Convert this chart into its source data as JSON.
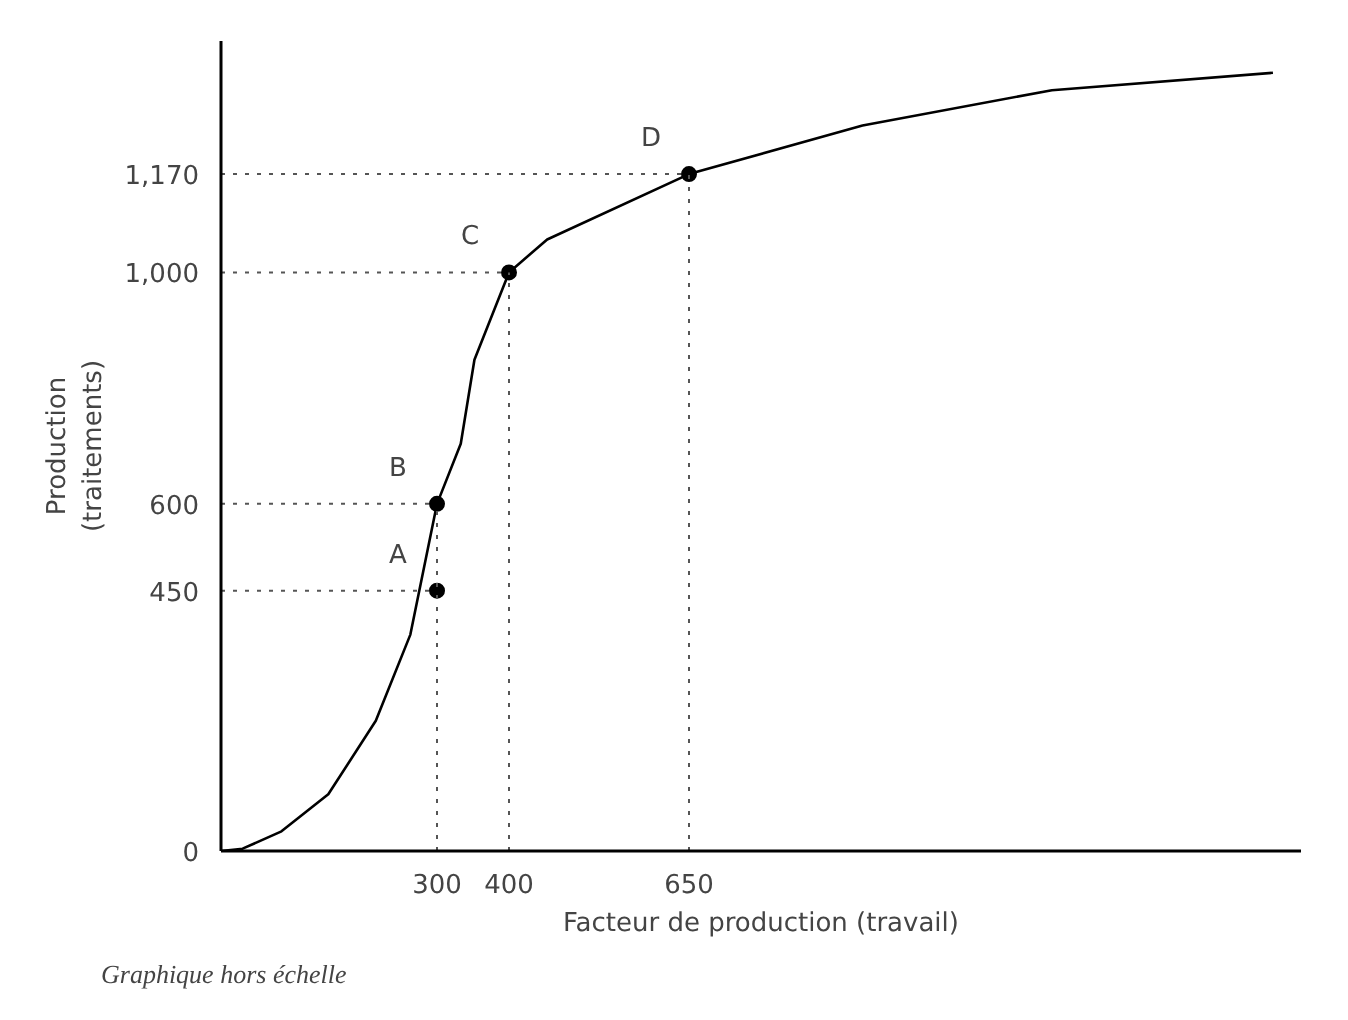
{
  "chart_data": {
    "type": "line",
    "xlabel": "Facteur de production (travail)",
    "ylabel": "Production\n(traitements)",
    "xlim": [
      0,
      1500
    ],
    "ylim": [
      0,
      1400
    ],
    "xticks": [
      300,
      400,
      650
    ],
    "yticks": [
      0,
      450,
      600,
      {
        "value": 1000,
        "label": "1,000"
      },
      {
        "value": 1170,
        "label": "1,170"
      }
    ],
    "grid": false,
    "series": [
      {
        "color": "#000000",
        "marker": "none",
        "line_style": "solid",
        "x": [
          0,
          30,
          84,
          149,
          215,
          263,
          300,
          333,
          352,
          400,
          453,
          650,
          891,
          1154,
          1461
        ],
        "values": [
          0,
          4,
          34,
          98,
          225,
          374,
          600,
          704,
          849,
          1000,
          1057,
          1170,
          1254,
          1315,
          1345
        ]
      },
      {
        "type": "scatter",
        "color": "#000000",
        "marker": "circle",
        "x": [
          300,
          300,
          400,
          650
        ],
        "values": [
          450,
          600,
          1000,
          1170
        ]
      }
    ],
    "ref_lines": [
      {
        "axis": "y",
        "value": 450,
        "line_style": "dotted",
        "color": "#555555"
      },
      {
        "axis": "y",
        "value": 600,
        "line_style": "dotted",
        "color": "#555555"
      },
      {
        "axis": "y",
        "value": 1000,
        "line_style": "dotted",
        "color": "#555555"
      },
      {
        "axis": "y",
        "value": 1170,
        "line_style": "dotted",
        "color": "#555555"
      },
      {
        "axis": "x",
        "value": 300,
        "line_style": "dotted",
        "color": "#555555"
      },
      {
        "axis": "x",
        "value": 400,
        "line_style": "dotted",
        "color": "#555555"
      },
      {
        "axis": "x",
        "value": 650,
        "line_style": "dotted",
        "color": "#555555"
      }
    ],
    "annotations": [
      {
        "text": "A",
        "x": 300,
        "y": 450
      },
      {
        "text": "B",
        "x": 300,
        "y": 600
      },
      {
        "text": "C",
        "x": 400,
        "y": 1000
      },
      {
        "text": "D",
        "x": 650,
        "y": 1170
      },
      "Graphique hors échelle"
    ]
  }
}
